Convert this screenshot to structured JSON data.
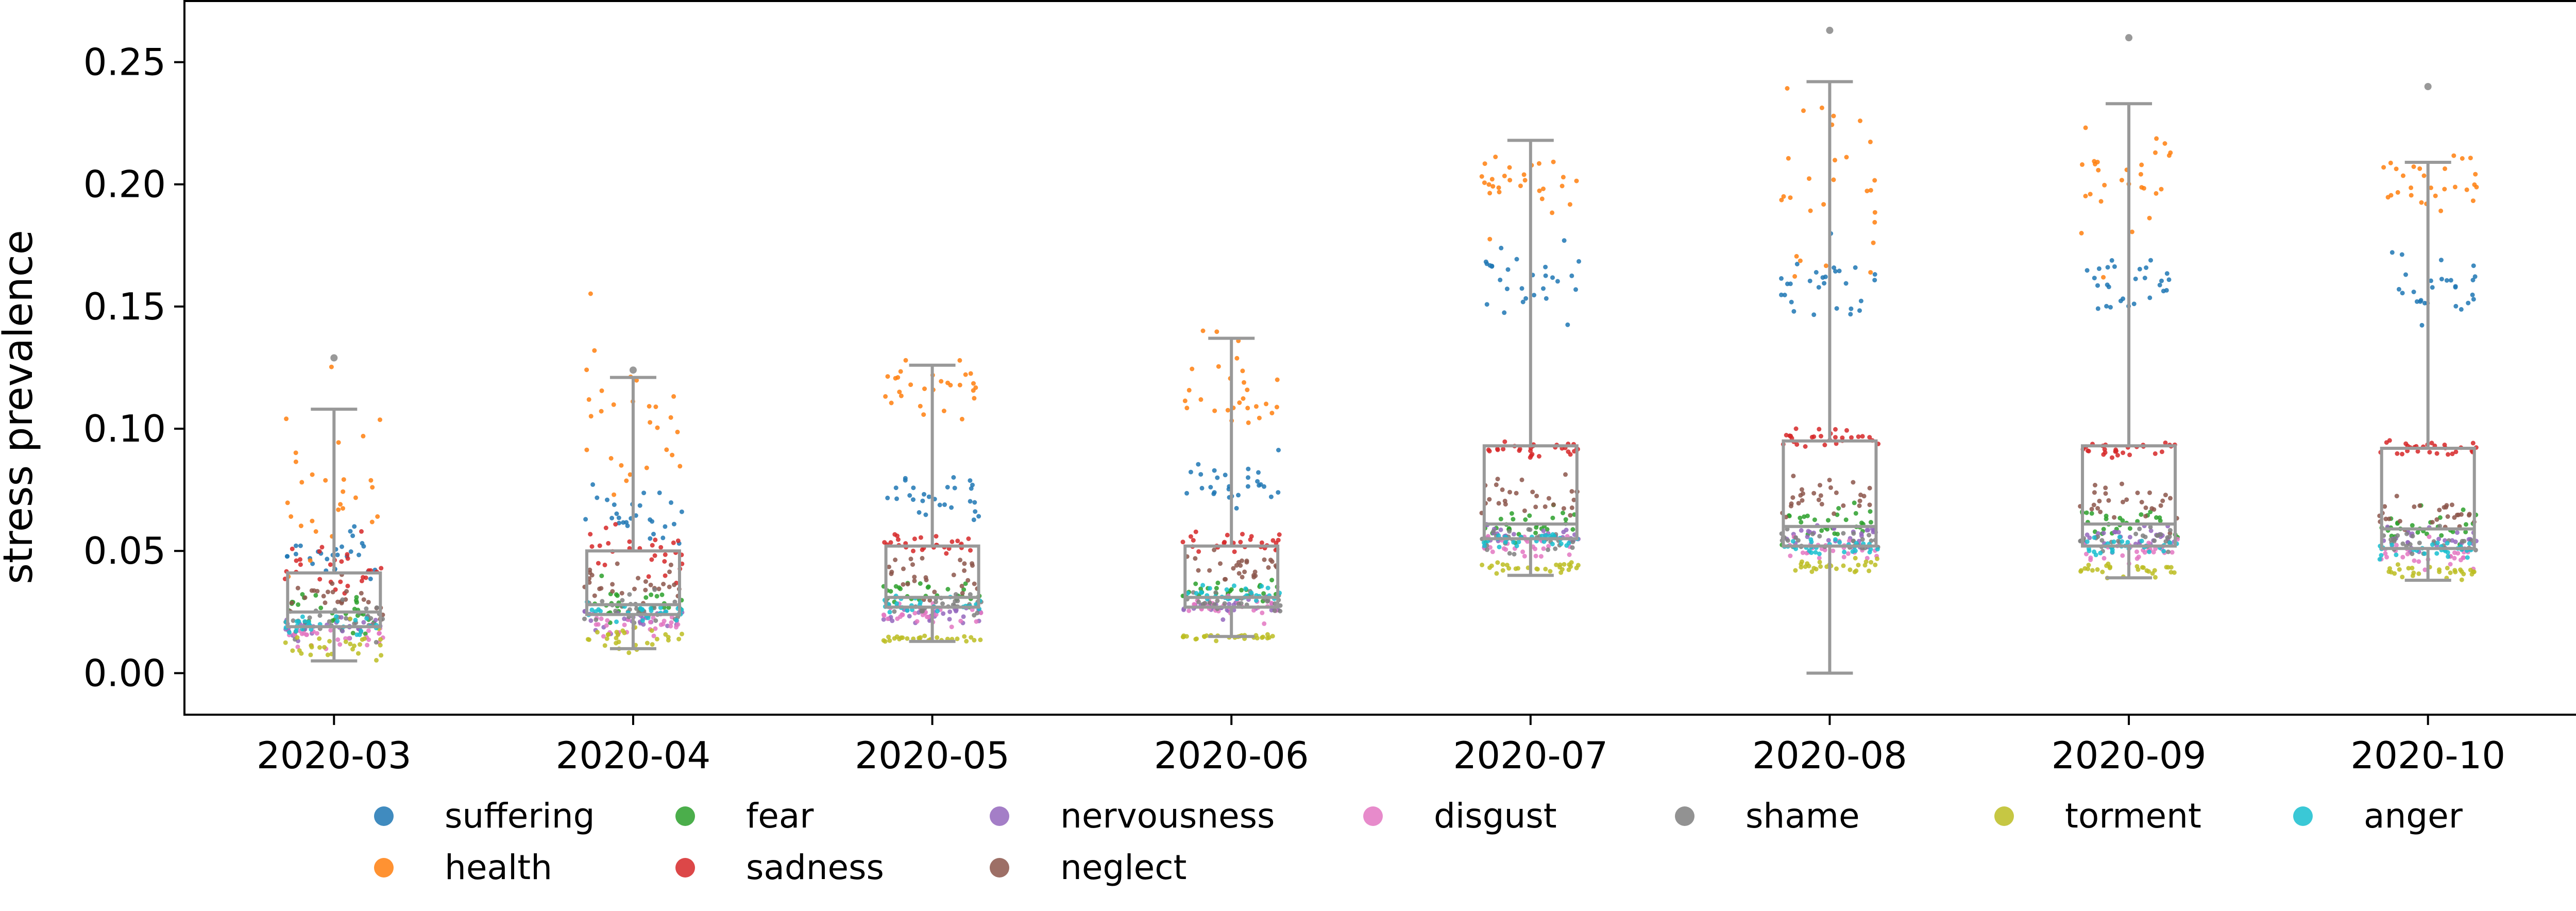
{
  "chart_data": {
    "type": "box-strip",
    "xlabel": "",
    "ylabel": "stress prevalence",
    "ylim": [
      -0.017,
      0.275
    ],
    "yticks": [
      0.0,
      0.05,
      0.1,
      0.15,
      0.2,
      0.25
    ],
    "ytick_labels": [
      "0.00",
      "0.05",
      "0.10",
      "0.15",
      "0.20",
      "0.25"
    ],
    "categories": [
      "2020-03",
      "2020-04",
      "2020-05",
      "2020-06",
      "2020-07",
      "2020-08",
      "2020-09",
      "2020-10"
    ],
    "box_color": "#999999",
    "boxes": [
      {
        "category": "2020-03",
        "whisker_low": 0.005,
        "q1": 0.019,
        "median": 0.025,
        "q3": 0.041,
        "whisker_high": 0.108,
        "outliers": [
          0.129
        ]
      },
      {
        "category": "2020-04",
        "whisker_low": 0.01,
        "q1": 0.024,
        "median": 0.028,
        "q3": 0.05,
        "whisker_high": 0.121,
        "outliers": [
          0.124
        ]
      },
      {
        "category": "2020-05",
        "whisker_low": 0.013,
        "q1": 0.027,
        "median": 0.031,
        "q3": 0.052,
        "whisker_high": 0.126,
        "outliers": []
      },
      {
        "category": "2020-06",
        "whisker_low": 0.015,
        "q1": 0.027,
        "median": 0.031,
        "q3": 0.052,
        "whisker_high": 0.137,
        "outliers": []
      },
      {
        "category": "2020-07",
        "whisker_low": 0.04,
        "q1": 0.055,
        "median": 0.061,
        "q3": 0.093,
        "whisker_high": 0.218,
        "outliers": []
      },
      {
        "category": "2020-08",
        "whisker_low": 0.0,
        "q1": 0.052,
        "median": 0.06,
        "q3": 0.095,
        "whisker_high": 0.242,
        "outliers": [
          0.263
        ]
      },
      {
        "category": "2020-09",
        "whisker_low": 0.039,
        "q1": 0.052,
        "median": 0.061,
        "q3": 0.093,
        "whisker_high": 0.233,
        "outliers": [
          0.26
        ]
      },
      {
        "category": "2020-10",
        "whisker_low": 0.038,
        "q1": 0.051,
        "median": 0.059,
        "q3": 0.092,
        "whisker_high": 0.209,
        "outliers": [
          0.24
        ]
      }
    ],
    "series": [
      {
        "name": "suffering",
        "color": "#1f77b4",
        "values": [
          0.05,
          0.065,
          0.072,
          0.077,
          0.16,
          0.16,
          0.158,
          0.158
        ],
        "spread": [
          0.012,
          0.01,
          0.009,
          0.009,
          0.012,
          0.013,
          0.012,
          0.012
        ]
      },
      {
        "name": "health",
        "color": "#ff7f0e",
        "values": [
          0.075,
          0.105,
          0.118,
          0.118,
          0.202,
          0.202,
          0.202,
          0.2
        ],
        "spread": [
          0.028,
          0.022,
          0.01,
          0.018,
          0.012,
          0.03,
          0.02,
          0.01
        ]
      },
      {
        "name": "fear",
        "color": "#2ca02c",
        "values": [
          0.024,
          0.028,
          0.032,
          0.033,
          0.06,
          0.062,
          0.062,
          0.06
        ],
        "spread": [
          0.008,
          0.006,
          0.005,
          0.004,
          0.006,
          0.007,
          0.006,
          0.006
        ]
      },
      {
        "name": "sadness",
        "color": "#d62728",
        "values": [
          0.042,
          0.048,
          0.052,
          0.052,
          0.092,
          0.096,
          0.092,
          0.092
        ],
        "spread": [
          0.01,
          0.008,
          0.004,
          0.004,
          0.003,
          0.004,
          0.003,
          0.003
        ]
      },
      {
        "name": "nervousness",
        "color": "#9467bd",
        "values": [
          0.018,
          0.022,
          0.024,
          0.027,
          0.056,
          0.056,
          0.056,
          0.055
        ],
        "spread": [
          0.005,
          0.004,
          0.003,
          0.003,
          0.004,
          0.004,
          0.004,
          0.004
        ]
      },
      {
        "name": "neglect",
        "color": "#8c564b",
        "values": [
          0.03,
          0.036,
          0.04,
          0.043,
          0.072,
          0.072,
          0.068,
          0.066
        ],
        "spread": [
          0.008,
          0.008,
          0.007,
          0.006,
          0.007,
          0.007,
          0.006,
          0.006
        ]
      },
      {
        "name": "disgust",
        "color": "#e377c2",
        "values": [
          0.015,
          0.02,
          0.024,
          0.027,
          0.052,
          0.05,
          0.05,
          0.048
        ],
        "spread": [
          0.005,
          0.004,
          0.003,
          0.003,
          0.004,
          0.004,
          0.004,
          0.004
        ]
      },
      {
        "name": "shame",
        "color": "#7f7f7f",
        "values": [
          0.022,
          0.026,
          0.028,
          0.03,
          0.055,
          0.055,
          0.055,
          0.054
        ],
        "spread": [
          0.006,
          0.005,
          0.004,
          0.003,
          0.004,
          0.004,
          0.004,
          0.004
        ]
      },
      {
        "name": "torment",
        "color": "#bcbd22",
        "values": [
          0.012,
          0.014,
          0.014,
          0.015,
          0.043,
          0.044,
          0.042,
          0.041
        ],
        "spread": [
          0.005,
          0.003,
          0.001,
          0.001,
          0.002,
          0.003,
          0.002,
          0.002
        ]
      },
      {
        "name": "anger",
        "color": "#17becf",
        "values": [
          0.02,
          0.025,
          0.028,
          0.032,
          0.055,
          0.052,
          0.052,
          0.05
        ],
        "spread": [
          0.004,
          0.003,
          0.003,
          0.003,
          0.003,
          0.003,
          0.003,
          0.003
        ]
      }
    ],
    "legend": {
      "placement": "bottom",
      "rows": [
        [
          "suffering",
          "fear",
          "nervousness",
          "disgust",
          "shame",
          "torment",
          "anger"
        ],
        [
          "health",
          "sadness",
          "neglect"
        ]
      ]
    }
  }
}
